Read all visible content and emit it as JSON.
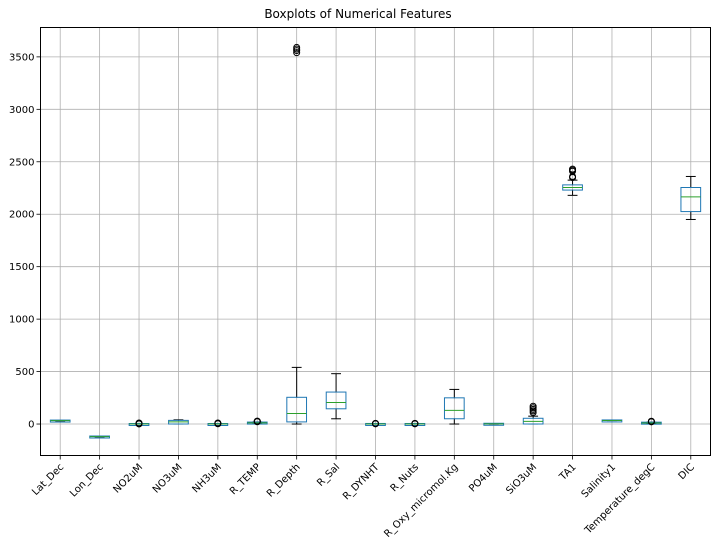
{
  "chart_data": {
    "type": "boxplot",
    "title": "Boxplots of Numerical Features",
    "xlabel": "",
    "ylabel": "",
    "ylim": [
      -300,
      3780
    ],
    "yticks": [
      0,
      500,
      1000,
      1500,
      2000,
      2500,
      3000,
      3500
    ],
    "grid": true,
    "colors": {
      "box": "#1f77b4",
      "median": "#2ca02c",
      "whisker": "#000000",
      "flier": "#000000",
      "grid": "#b0b0b0"
    },
    "categories": [
      "Lat_Dec",
      "Lon_Dec",
      "NO2uM",
      "NO3uM",
      "NH3uM",
      "R_TEMP",
      "R_Depth",
      "R_Sal",
      "R_DYNHT",
      "R_Nuts",
      "R_Oxy_micromol.Kg",
      "PO4uM",
      "SiO3uM",
      "TA1",
      "Salinity1",
      "Temperature_degC",
      "DIC"
    ],
    "boxes": [
      {
        "label": "Lat_Dec",
        "whislo": 30,
        "q1": 31,
        "med": 32,
        "q3": 33,
        "whishi": 34,
        "fliers": []
      },
      {
        "label": "Lon_Dec",
        "whislo": -122,
        "q1": -121,
        "med": -120,
        "q3": -119,
        "whishi": -118,
        "fliers": []
      },
      {
        "label": "NO2uM",
        "whislo": 0,
        "q1": 0,
        "med": 0.1,
        "q3": 0.2,
        "whishi": 0.5,
        "fliers": [
          1,
          3,
          6,
          10
        ]
      },
      {
        "label": "NO3uM",
        "whislo": 0,
        "q1": 5,
        "med": 20,
        "q3": 30,
        "whishi": 40,
        "fliers": []
      },
      {
        "label": "NH3uM",
        "whislo": 0,
        "q1": 0,
        "med": 0.1,
        "q3": 0.3,
        "whishi": 1,
        "fliers": [
          3,
          6,
          10
        ]
      },
      {
        "label": "R_TEMP",
        "whislo": 3,
        "q1": 8,
        "med": 11,
        "q3": 14,
        "whishi": 20,
        "fliers": [
          22,
          25,
          28
        ]
      },
      {
        "label": "R_Depth",
        "whislo": 0,
        "q1": 25,
        "med": 100,
        "q3": 250,
        "whishi": 540,
        "fliers": [
          3540,
          3560,
          3575,
          3590
        ]
      },
      {
        "label": "R_Sal",
        "whislo": 50,
        "q1": 150,
        "med": 205,
        "q3": 300,
        "whishi": 480,
        "fliers": []
      },
      {
        "label": "R_DYNHT",
        "whislo": 0,
        "q1": 0.2,
        "med": 0.4,
        "q3": 0.6,
        "whishi": 1,
        "fliers": [
          2,
          4,
          6
        ]
      },
      {
        "label": "R_Nuts",
        "whislo": 0,
        "q1": 0.1,
        "med": 0.2,
        "q3": 0.4,
        "whishi": 0.8,
        "fliers": [
          2,
          4,
          6
        ]
      },
      {
        "label": "R_Oxy_micromol.Kg",
        "whislo": 0,
        "q1": 55,
        "med": 130,
        "q3": 245,
        "whishi": 330,
        "fliers": []
      },
      {
        "label": "PO4uM",
        "whislo": 0,
        "q1": 0.5,
        "med": 1.5,
        "q3": 2.5,
        "whishi": 4,
        "fliers": []
      },
      {
        "label": "SiO3uM",
        "whislo": 0,
        "q1": 5,
        "med": 25,
        "q3": 50,
        "whishi": 75,
        "fliers": [
          110,
          125,
          140,
          155,
          170
        ]
      },
      {
        "label": "TA1",
        "whislo": 2180,
        "q1": 2235,
        "med": 2255,
        "q3": 2275,
        "whishi": 2325,
        "fliers": [
          2350,
          2360,
          2410,
          2420,
          2430
        ]
      },
      {
        "label": "Salinity1",
        "whislo": 33,
        "q1": 33.5,
        "med": 34,
        "q3": 34.2,
        "whishi": 34.5,
        "fliers": []
      },
      {
        "label": "Temperature_degC",
        "whislo": 3,
        "q1": 8,
        "med": 10,
        "q3": 13,
        "whishi": 18,
        "fliers": [
          21,
          24,
          27
        ]
      },
      {
        "label": "DIC",
        "whislo": 1950,
        "q1": 2030,
        "med": 2165,
        "q3": 2250,
        "whishi": 2360,
        "fliers": []
      }
    ]
  }
}
